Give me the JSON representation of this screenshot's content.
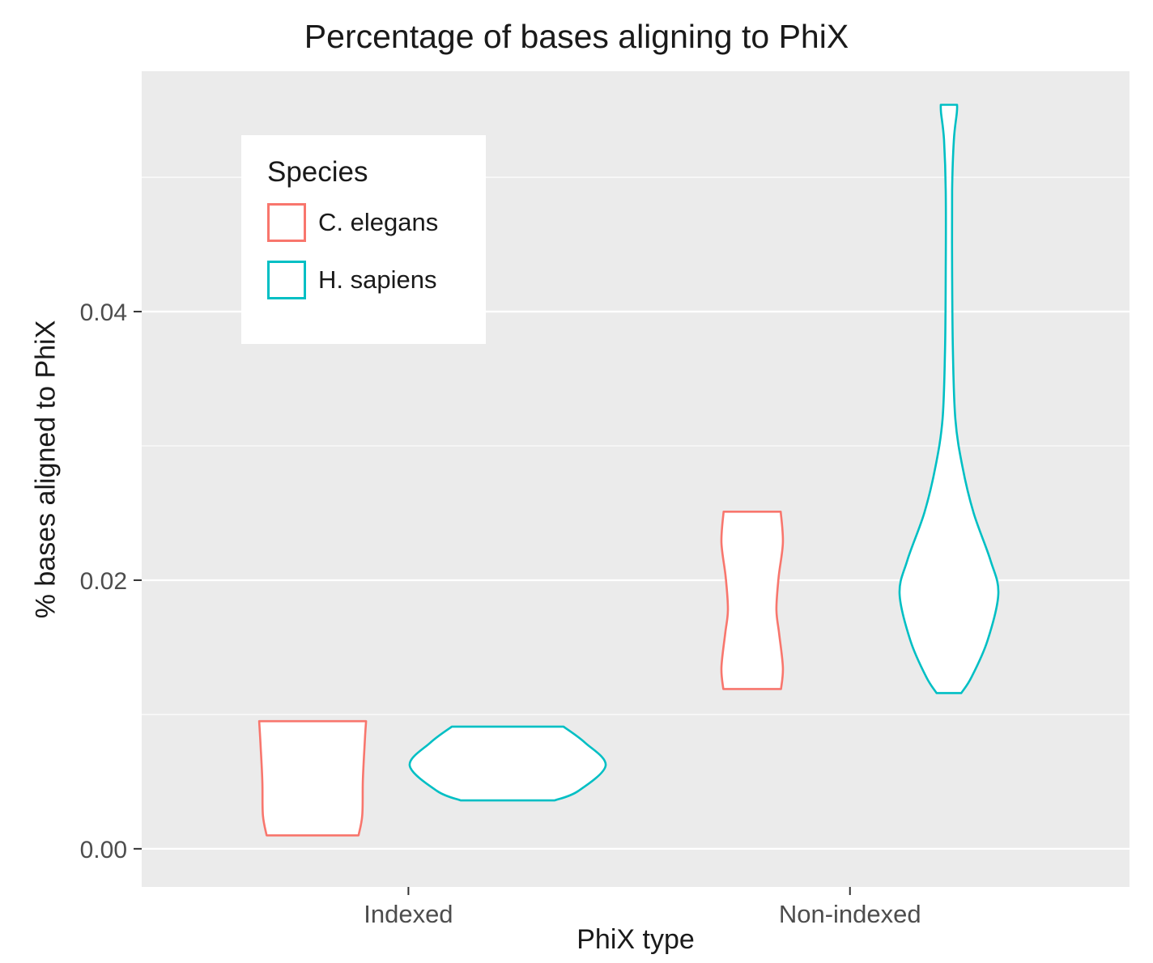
{
  "chart_data": {
    "type": "violin",
    "title": "Percentage of bases aligning to PhiX",
    "xlabel": "PhiX type",
    "ylabel": "% bases aligned to PhiX",
    "panel_bg": "#EBEBEB",
    "grid_color": "#FFFFFF",
    "tick_color": "#333333",
    "tick_label_color": "#4d4d4d",
    "categories": [
      {
        "label": "Indexed",
        "x_frac": 0.27
      },
      {
        "label": "Non-indexed",
        "x_frac": 0.717
      }
    ],
    "y_axis": {
      "ylim": [
        -0.00284,
        0.0579
      ],
      "ticks": [
        {
          "label": "0.00",
          "value": 0.0
        },
        {
          "label": "0.02",
          "value": 0.02
        },
        {
          "label": "0.04",
          "value": 0.04
        }
      ],
      "minor_ticks": [
        0.01,
        0.03,
        0.05
      ]
    },
    "legend": {
      "title": "Species",
      "position": "inside-top-left",
      "entries": [
        {
          "label": "C. elegans",
          "color": "#F8766D"
        },
        {
          "label": "H. sapiens",
          "color": "#00BFC4"
        }
      ]
    },
    "violins": [
      {
        "species": "C. elegans",
        "category": "Indexed",
        "color": "#F8766D",
        "x_frac": 0.173,
        "max_halfwidth_frac": 0.0541,
        "y_range": [
          0.001,
          0.0095
        ],
        "profile": [
          [
            0.001,
            0.86
          ],
          [
            0.0025,
            0.93
          ],
          [
            0.005,
            0.94
          ],
          [
            0.0075,
            0.97
          ],
          [
            0.0095,
            1.0
          ]
        ]
      },
      {
        "species": "H. sapiens",
        "category": "Indexed",
        "color": "#00BFC4",
        "x_frac": 0.3705,
        "max_halfwidth_frac": 0.0992,
        "y_range": [
          0.0036,
          0.0091
        ],
        "profile": [
          [
            0.0036,
            0.48
          ],
          [
            0.0043,
            0.72
          ],
          [
            0.0062,
            1.0
          ],
          [
            0.0079,
            0.79
          ],
          [
            0.0091,
            0.57
          ]
        ]
      },
      {
        "species": "C. elegans",
        "category": "Non-indexed",
        "color": "#F8766D",
        "x_frac": 0.618,
        "max_halfwidth_frac": 0.0311,
        "y_range": [
          0.0119,
          0.0251
        ],
        "profile": [
          [
            0.0119,
            0.94
          ],
          [
            0.0135,
            1.0
          ],
          [
            0.016,
            0.88
          ],
          [
            0.0178,
            0.79
          ],
          [
            0.0202,
            0.86
          ],
          [
            0.0228,
            1.0
          ],
          [
            0.0251,
            0.93
          ]
        ]
      },
      {
        "species": "H. sapiens",
        "category": "Non-indexed",
        "color": "#00BFC4",
        "x_frac": 0.8172,
        "max_halfwidth_frac": 0.05,
        "y_range": [
          0.0116,
          0.0554
        ],
        "profile": [
          [
            0.0116,
            0.25
          ],
          [
            0.0128,
            0.46
          ],
          [
            0.0155,
            0.78
          ],
          [
            0.019,
            1.0
          ],
          [
            0.0215,
            0.84
          ],
          [
            0.025,
            0.5
          ],
          [
            0.0285,
            0.27
          ],
          [
            0.032,
            0.13
          ],
          [
            0.037,
            0.08
          ],
          [
            0.043,
            0.065
          ],
          [
            0.049,
            0.065
          ],
          [
            0.0528,
            0.1
          ],
          [
            0.0548,
            0.16
          ],
          [
            0.0554,
            0.165
          ]
        ]
      }
    ]
  }
}
